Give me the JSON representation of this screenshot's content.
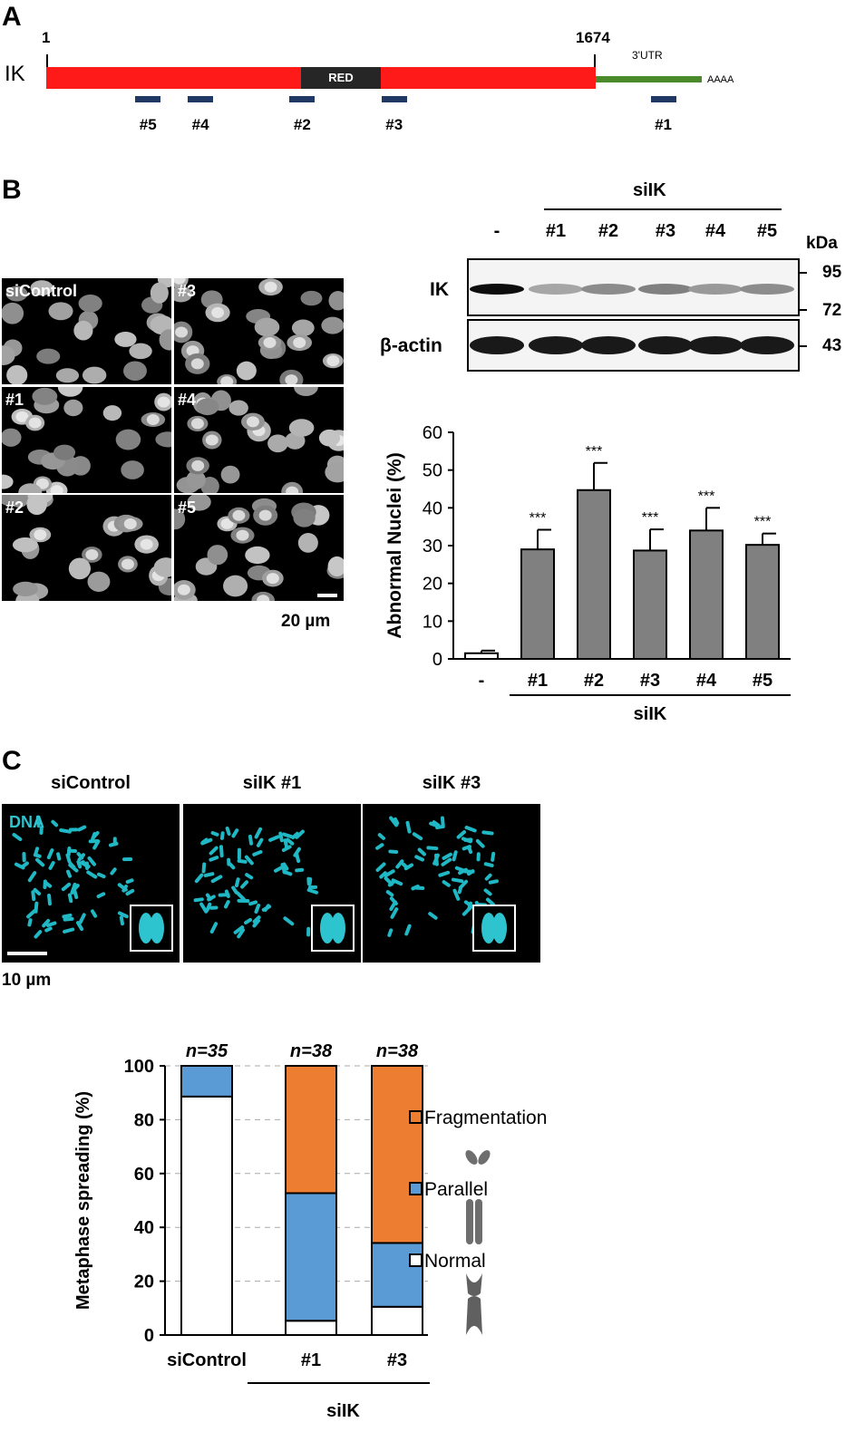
{
  "panel_a": {
    "letter": "A",
    "gene": "IK",
    "start": "1",
    "end": "1674",
    "utr": "3'UTR",
    "polya": "AAAA",
    "domain": "RED",
    "sirnas": [
      {
        "label": "#5",
        "pos_nt": 310
      },
      {
        "label": "#4",
        "pos_nt": 470
      },
      {
        "label": "#2",
        "pos_nt": 780
      },
      {
        "label": "#3",
        "pos_nt": 1060
      },
      {
        "label": "#1",
        "pos_nt": 1880
      }
    ]
  },
  "panel_b": {
    "letter": "B",
    "images": [
      {
        "label": "siControl"
      },
      {
        "label": "#3"
      },
      {
        "label": "#1"
      },
      {
        "label": "#4"
      },
      {
        "label": "#2"
      },
      {
        "label": "#5"
      }
    ],
    "scale_bar": "20 µm",
    "blot": {
      "group_label": "siIK",
      "lanes": [
        "-",
        "#1",
        "#2",
        "#3",
        "#4",
        "#5"
      ],
      "kda_label": "kDa",
      "rows": [
        {
          "name": "IK",
          "markers": [
            "95",
            "72"
          ],
          "intensity": [
            0.95,
            0.35,
            0.45,
            0.5,
            0.4,
            0.45
          ]
        },
        {
          "name": "β-actin",
          "markers": [
            "43"
          ],
          "intensity": [
            0.9,
            0.9,
            0.9,
            0.9,
            0.9,
            0.9
          ]
        }
      ]
    }
  },
  "panel_c": {
    "letter": "C",
    "images": [
      {
        "label": "siControl"
      },
      {
        "label": "siIK #1"
      },
      {
        "label": "siIK #3"
      }
    ],
    "dna_label": "DNA",
    "scale_bar": "10 µm",
    "legend_items": [
      "Fragmentation",
      "Parallel",
      "Normal"
    ]
  },
  "chart_data": [
    {
      "type": "bar",
      "ylabel": "Abnormal Nuclei (%)",
      "ylim": [
        0,
        60
      ],
      "yticks": [
        "0",
        "10",
        "20",
        "30",
        "40",
        "50",
        "60"
      ],
      "categories": [
        "-",
        "#1",
        "#2",
        "#3",
        "#4",
        "#5"
      ],
      "values": [
        1.5,
        29,
        44.7,
        28.7,
        34,
        30.2
      ],
      "errors": [
        0.7,
        5.2,
        7.2,
        5.6,
        6,
        3
      ],
      "significance": [
        "",
        "***",
        "***",
        "***",
        "***",
        "***"
      ],
      "group_label": "siIK",
      "colors": {
        "control": "#ffffff",
        "treated": "#808080"
      }
    },
    {
      "type": "bar",
      "stacked": true,
      "ylabel": "Metaphase spreading (%)",
      "ylim": [
        0,
        100
      ],
      "yticks": [
        "0",
        "20",
        "40",
        "60",
        "80",
        "100"
      ],
      "categories": [
        "siControl",
        "#1",
        "#3"
      ],
      "n_labels": [
        "n=35",
        "n=38",
        "n=38"
      ],
      "group_label": "siIK",
      "grid": "dashed horizontal",
      "series": [
        {
          "name": "Normal",
          "values": [
            88.6,
            5.3,
            10.5
          ],
          "color": "#ffffff"
        },
        {
          "name": "Parallel",
          "values": [
            11.4,
            47.4,
            23.7
          ],
          "color": "#5b9bd5"
        },
        {
          "name": "Fragmentation",
          "values": [
            0,
            47.3,
            65.8
          ],
          "color": "#ed7d31"
        }
      ]
    }
  ]
}
